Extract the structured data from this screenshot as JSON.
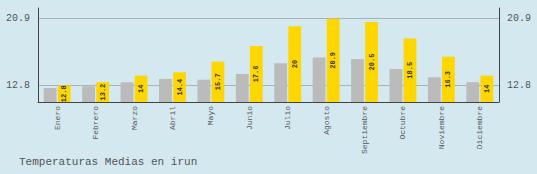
{
  "chart_data": {
    "type": "bar",
    "title": "Temperaturas Medias en irun",
    "categories": [
      "Enero",
      "Febrero",
      "Marzo",
      "Abril",
      "Mayo",
      "Junio",
      "Julio",
      "Agosto",
      "Septiembre",
      "Octubre",
      "Noviembre",
      "Diciembre"
    ],
    "series": [
      {
        "color": "#BBBBBB",
        "values": [
          12.5,
          12.7,
          13.2,
          13.6,
          13.5,
          14.2,
          15.5,
          16.2,
          16.0,
          14.8,
          13.8,
          13.2
        ]
      },
      {
        "color": "#FFD700",
        "values": [
          12.8,
          13.2,
          14.0,
          14.4,
          15.7,
          17.6,
          20.0,
          20.9,
          20.5,
          18.5,
          16.3,
          14.0
        ],
        "data_labels": true
      }
    ],
    "ylim": [
      10.8,
      22.2
    ],
    "yticks": [
      12.8,
      20.9
    ],
    "y2lim": [
      10.8,
      22.2
    ],
    "y2ticks": [
      12.8,
      20.9
    ],
    "grid": true
  }
}
